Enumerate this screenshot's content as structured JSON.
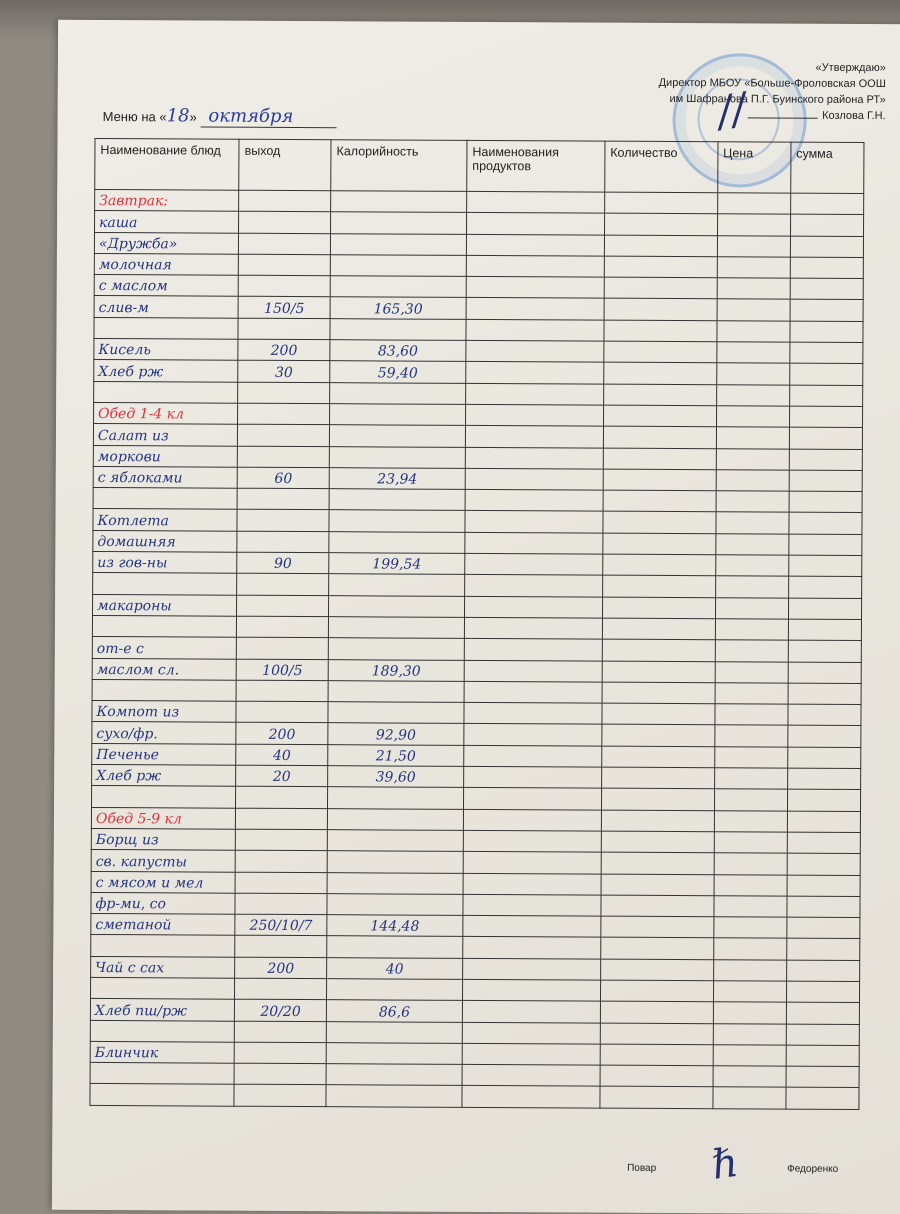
{
  "approval": {
    "line1": "«Утверждаю»",
    "line2": "Директор МБОУ «Больше-Фроловская ООШ",
    "line3": "им Шафранова П.Г.   Буинского района РТ»",
    "line4": "Козлова Г.Н."
  },
  "title": {
    "prefix": "Меню на «",
    "day": "18",
    "sep": "»",
    "month": "октября"
  },
  "table": {
    "headers": [
      "Наименование блюд",
      "выход",
      "Калорийность",
      "Наименования продуктов",
      "Количество",
      "Цена",
      "сумма"
    ],
    "rows": [
      {
        "name": "Завтрак:",
        "section": true
      },
      {
        "name": "каша"
      },
      {
        "name": "«Дружба»"
      },
      {
        "name": "молочная"
      },
      {
        "name": "с маслом"
      },
      {
        "name": "слив-м",
        "output": "150/5",
        "calories": "165,30"
      },
      {
        "name": ""
      },
      {
        "name": "Кисель",
        "output": "200",
        "calories": "83,60"
      },
      {
        "name": "Хлеб рж",
        "output": "30",
        "calories": "59,40"
      },
      {
        "name": ""
      },
      {
        "name": "Обед 1-4 кл",
        "section": true
      },
      {
        "name": "Салат из"
      },
      {
        "name": "моркови"
      },
      {
        "name": "с яблоками",
        "output": "60",
        "calories": "23,94"
      },
      {
        "name": ""
      },
      {
        "name": "Котлета"
      },
      {
        "name": "домашняя"
      },
      {
        "name": "из гов-ны",
        "output": "90",
        "calories": "199,54"
      },
      {
        "name": ""
      },
      {
        "name": "макароны"
      },
      {
        "name": ""
      },
      {
        "name": "от-е с"
      },
      {
        "name": "маслом сл.",
        "output": "100/5",
        "calories": "189,30"
      },
      {
        "name": ""
      },
      {
        "name": "Компот из"
      },
      {
        "name": "сухо/фр.",
        "output": "200",
        "calories": "92,90"
      },
      {
        "name": "Печенье",
        "output": "40",
        "calories": "21,50"
      },
      {
        "name": "Хлеб рж",
        "output": "20",
        "calories": "39,60"
      },
      {
        "name": ""
      },
      {
        "name": "Обед 5-9 кл",
        "section": true
      },
      {
        "name": "Борщ из"
      },
      {
        "name": "св. капусты"
      },
      {
        "name": "с мясом и мел"
      },
      {
        "name": "фр-ми, со"
      },
      {
        "name": "сметаной",
        "output": "250/10/7",
        "calories": "144,48"
      },
      {
        "name": ""
      },
      {
        "name": "Чай с сах",
        "output": "200",
        "calories": "40"
      },
      {
        "name": ""
      },
      {
        "name": "Хлеб пш/рж",
        "output": "20/20",
        "calories": "86,6"
      },
      {
        "name": ""
      },
      {
        "name": "Блинчик"
      },
      {
        "name": ""
      },
      {
        "name": ""
      }
    ]
  },
  "footer": {
    "role": "Повар",
    "name": "Федоренко"
  },
  "colors": {
    "ink_blue": "#25357f",
    "ink_red": "#e0303a",
    "stamp": "#5a8cc8"
  }
}
